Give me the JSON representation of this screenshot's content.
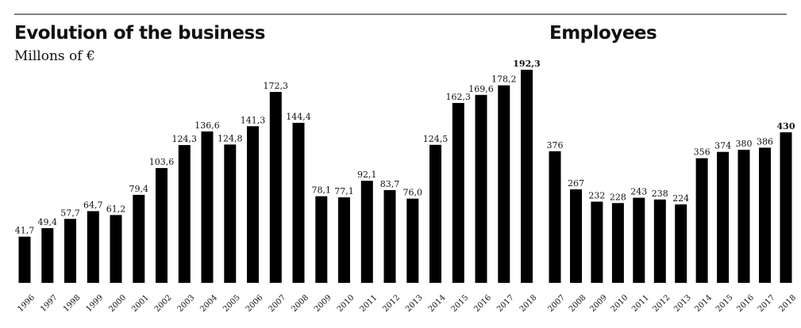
{
  "chart_data": [
    {
      "type": "bar",
      "title": "Evolution of the business",
      "subtitle": "Millons of €",
      "categories": [
        "1996",
        "1997",
        "1998",
        "1999",
        "2000",
        "2001",
        "2002",
        "2003",
        "2004",
        "2005",
        "2006",
        "2007",
        "2008",
        "2009",
        "2010",
        "2011",
        "2012",
        "2013",
        "2014",
        "2015",
        "2016",
        "2017",
        "2018"
      ],
      "values": [
        41.7,
        49.4,
        57.7,
        64.7,
        61.2,
        79.4,
        103.6,
        124.3,
        136.6,
        124.8,
        141.3,
        172.3,
        144.4,
        78.1,
        77.1,
        92.1,
        83.7,
        76.0,
        124.5,
        162.3,
        169.6,
        178.2,
        192.3
      ],
      "labels": [
        "41,7",
        "49,4",
        "57,7",
        "64,7",
        "61,2",
        "79,4",
        "103,6",
        "124,3",
        "136,6",
        "124,8",
        "141,3",
        "172,3",
        "144,4",
        "78,1",
        "77,1",
        "92,1",
        "83,7",
        "76,0",
        "124,5",
        "162,3",
        "169,6",
        "178,2",
        "192,3"
      ],
      "highlight_last_label": true,
      "grid": false,
      "bar_color": "#000000"
    },
    {
      "type": "bar",
      "title": "Employees",
      "categories": [
        "2007",
        "2008",
        "2009",
        "2010",
        "2011",
        "2012",
        "2013",
        "2014",
        "2015",
        "2016",
        "2017",
        "2018"
      ],
      "values": [
        376,
        267,
        232,
        228,
        243,
        238,
        224,
        356,
        374,
        380,
        386,
        430
      ],
      "labels": [
        "376",
        "267",
        "232",
        "228",
        "243",
        "238",
        "224",
        "356",
        "374",
        "380",
        "386",
        "430"
      ],
      "highlight_last_label": true,
      "grid": false,
      "bar_color": "#000000"
    }
  ]
}
